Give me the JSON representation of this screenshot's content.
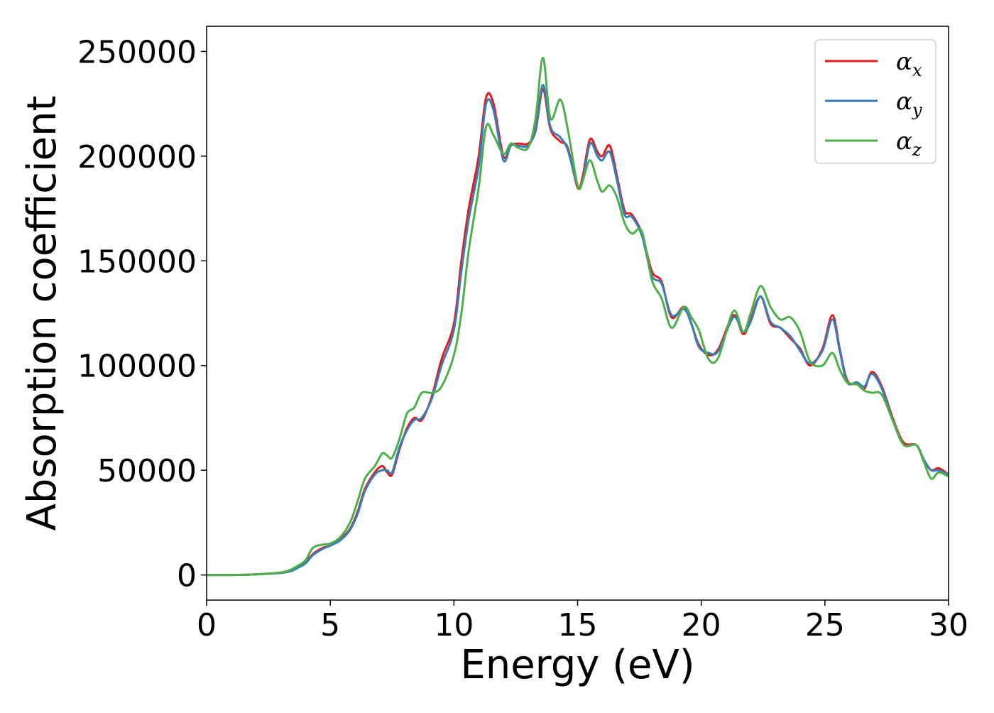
{
  "chart_data": {
    "type": "line",
    "title": "",
    "xlabel": "Energy (eV)",
    "ylabel": "Absorption coefficient",
    "xlim": [
      0,
      30
    ],
    "ylim": [
      -12000,
      262000
    ],
    "xticks": [
      0,
      5,
      10,
      15,
      20,
      25,
      30
    ],
    "yticks": [
      0,
      50000,
      100000,
      150000,
      200000,
      250000
    ],
    "grid": false,
    "legend_position": "top-right",
    "series": [
      {
        "name": "αx",
        "legend_base": "α",
        "legend_sub": "x",
        "color": "#e41a1c",
        "points": [
          [
            0,
            0
          ],
          [
            1,
            0
          ],
          [
            2,
            300
          ],
          [
            3,
            1000
          ],
          [
            3.4,
            2000
          ],
          [
            3.7,
            4000
          ],
          [
            4.0,
            6000
          ],
          [
            4.3,
            10000
          ],
          [
            4.7,
            13000
          ],
          [
            5.0,
            14000
          ],
          [
            5.4,
            17000
          ],
          [
            5.8,
            22000
          ],
          [
            6.1,
            30000
          ],
          [
            6.4,
            41000
          ],
          [
            6.8,
            49000
          ],
          [
            7.1,
            52000
          ],
          [
            7.3,
            49000
          ],
          [
            7.5,
            48000
          ],
          [
            7.8,
            60000
          ],
          [
            8.1,
            70000
          ],
          [
            8.4,
            75000
          ],
          [
            8.7,
            74000
          ],
          [
            9.1,
            85000
          ],
          [
            9.5,
            103000
          ],
          [
            10.0,
            120000
          ],
          [
            10.3,
            150000
          ],
          [
            10.6,
            175000
          ],
          [
            11.0,
            200000
          ],
          [
            11.3,
            228000
          ],
          [
            11.6,
            225000
          ],
          [
            12.0,
            200000
          ],
          [
            12.3,
            205000
          ],
          [
            12.6,
            206000
          ],
          [
            13.0,
            206000
          ],
          [
            13.3,
            212000
          ],
          [
            13.6,
            232000
          ],
          [
            13.9,
            213000
          ],
          [
            14.3,
            207000
          ],
          [
            14.6,
            204000
          ],
          [
            15.0,
            185000
          ],
          [
            15.2,
            190000
          ],
          [
            15.5,
            208000
          ],
          [
            15.8,
            202000
          ],
          [
            16.0,
            200000
          ],
          [
            16.3,
            205000
          ],
          [
            16.6,
            190000
          ],
          [
            16.9,
            174000
          ],
          [
            17.2,
            172000
          ],
          [
            17.6,
            163000
          ],
          [
            18.0,
            145000
          ],
          [
            18.4,
            140000
          ],
          [
            18.8,
            123000
          ],
          [
            19.3,
            128000
          ],
          [
            19.6,
            120000
          ],
          [
            19.9,
            110000
          ],
          [
            20.3,
            105000
          ],
          [
            20.7,
            108000
          ],
          [
            21.3,
            124000
          ],
          [
            21.7,
            115000
          ],
          [
            22.0,
            122000
          ],
          [
            22.4,
            133000
          ],
          [
            22.8,
            120000
          ],
          [
            23.2,
            118000
          ],
          [
            23.6,
            113000
          ],
          [
            24.0,
            108000
          ],
          [
            24.4,
            100000
          ],
          [
            24.9,
            108000
          ],
          [
            25.3,
            124000
          ],
          [
            25.6,
            108000
          ],
          [
            25.9,
            93000
          ],
          [
            26.3,
            91000
          ],
          [
            26.6,
            89000
          ],
          [
            26.9,
            97000
          ],
          [
            27.3,
            90000
          ],
          [
            27.8,
            73000
          ],
          [
            28.2,
            63000
          ],
          [
            28.7,
            62000
          ],
          [
            29.0,
            55000
          ],
          [
            29.3,
            50000
          ],
          [
            29.6,
            51000
          ],
          [
            30,
            48000
          ]
        ]
      },
      {
        "name": "αy",
        "legend_base": "α",
        "legend_sub": "y",
        "color": "#377eb8",
        "points": [
          [
            0,
            0
          ],
          [
            1,
            0
          ],
          [
            2,
            300
          ],
          [
            3,
            1000
          ],
          [
            3.4,
            1800
          ],
          [
            3.7,
            3500
          ],
          [
            4.0,
            5500
          ],
          [
            4.3,
            9500
          ],
          [
            4.7,
            12500
          ],
          [
            5.0,
            14000
          ],
          [
            5.4,
            16500
          ],
          [
            5.8,
            21500
          ],
          [
            6.1,
            29000
          ],
          [
            6.4,
            40000
          ],
          [
            6.8,
            48000
          ],
          [
            7.1,
            50000
          ],
          [
            7.3,
            50000
          ],
          [
            7.5,
            49000
          ],
          [
            7.8,
            61000
          ],
          [
            8.1,
            69000
          ],
          [
            8.4,
            74000
          ],
          [
            8.7,
            75000
          ],
          [
            9.1,
            84000
          ],
          [
            9.5,
            100000
          ],
          [
            10.0,
            117000
          ],
          [
            10.3,
            145000
          ],
          [
            10.6,
            170000
          ],
          [
            11.0,
            195000
          ],
          [
            11.3,
            225000
          ],
          [
            11.6,
            222000
          ],
          [
            12.0,
            198000
          ],
          [
            12.3,
            205000
          ],
          [
            12.6,
            205000
          ],
          [
            13.0,
            205000
          ],
          [
            13.3,
            213000
          ],
          [
            13.6,
            234000
          ],
          [
            13.9,
            214000
          ],
          [
            14.3,
            209000
          ],
          [
            14.6,
            203000
          ],
          [
            15.0,
            186000
          ],
          [
            15.2,
            188000
          ],
          [
            15.5,
            206000
          ],
          [
            15.8,
            200000
          ],
          [
            16.0,
            198000
          ],
          [
            16.3,
            202000
          ],
          [
            16.6,
            188000
          ],
          [
            16.9,
            172000
          ],
          [
            17.2,
            171000
          ],
          [
            17.6,
            162000
          ],
          [
            18.0,
            143000
          ],
          [
            18.4,
            139000
          ],
          [
            18.8,
            124000
          ],
          [
            19.3,
            127000
          ],
          [
            19.6,
            120000
          ],
          [
            19.9,
            109000
          ],
          [
            20.3,
            106000
          ],
          [
            20.7,
            107000
          ],
          [
            21.3,
            123000
          ],
          [
            21.7,
            116000
          ],
          [
            22.0,
            121000
          ],
          [
            22.4,
            133000
          ],
          [
            22.8,
            121000
          ],
          [
            23.2,
            118000
          ],
          [
            23.6,
            114000
          ],
          [
            24.0,
            107000
          ],
          [
            24.4,
            101000
          ],
          [
            24.9,
            107000
          ],
          [
            25.3,
            122000
          ],
          [
            25.6,
            107000
          ],
          [
            25.9,
            92000
          ],
          [
            26.3,
            92000
          ],
          [
            26.6,
            90000
          ],
          [
            26.9,
            96000
          ],
          [
            27.3,
            89000
          ],
          [
            27.8,
            72000
          ],
          [
            28.2,
            62000
          ],
          [
            28.7,
            62000
          ],
          [
            29.0,
            55000
          ],
          [
            29.3,
            50000
          ],
          [
            29.6,
            50000
          ],
          [
            30,
            48000
          ]
        ]
      },
      {
        "name": "αz",
        "legend_base": "α",
        "legend_sub": "z",
        "color": "#4daf4a",
        "points": [
          [
            0,
            0
          ],
          [
            1,
            0
          ],
          [
            2,
            300
          ],
          [
            3,
            1200
          ],
          [
            3.4,
            2500
          ],
          [
            3.7,
            4500
          ],
          [
            4.0,
            7000
          ],
          [
            4.3,
            13000
          ],
          [
            4.7,
            14500
          ],
          [
            5.0,
            15000
          ],
          [
            5.4,
            18000
          ],
          [
            5.8,
            25000
          ],
          [
            6.1,
            35000
          ],
          [
            6.4,
            46000
          ],
          [
            6.8,
            52000
          ],
          [
            7.1,
            58000
          ],
          [
            7.3,
            57000
          ],
          [
            7.5,
            56000
          ],
          [
            7.8,
            65000
          ],
          [
            8.1,
            77000
          ],
          [
            8.4,
            80000
          ],
          [
            8.7,
            87000
          ],
          [
            9.1,
            87000
          ],
          [
            9.5,
            90000
          ],
          [
            10.0,
            105000
          ],
          [
            10.3,
            125000
          ],
          [
            10.6,
            155000
          ],
          [
            11.0,
            185000
          ],
          [
            11.3,
            214000
          ],
          [
            11.6,
            210000
          ],
          [
            12.0,
            201000
          ],
          [
            12.3,
            206000
          ],
          [
            12.6,
            204000
          ],
          [
            13.0,
            204000
          ],
          [
            13.3,
            218000
          ],
          [
            13.6,
            247000
          ],
          [
            13.9,
            218000
          ],
          [
            14.3,
            227000
          ],
          [
            14.6,
            213000
          ],
          [
            15.0,
            186000
          ],
          [
            15.2,
            188000
          ],
          [
            15.5,
            198000
          ],
          [
            15.8,
            188000
          ],
          [
            16.0,
            183000
          ],
          [
            16.3,
            186000
          ],
          [
            16.6,
            180000
          ],
          [
            16.9,
            168000
          ],
          [
            17.2,
            163000
          ],
          [
            17.6,
            164000
          ],
          [
            18.0,
            141000
          ],
          [
            18.4,
            132000
          ],
          [
            18.8,
            118000
          ],
          [
            19.3,
            128000
          ],
          [
            19.6,
            123000
          ],
          [
            19.9,
            117000
          ],
          [
            20.3,
            103000
          ],
          [
            20.7,
            104000
          ],
          [
            21.3,
            126000
          ],
          [
            21.7,
            116000
          ],
          [
            22.0,
            125000
          ],
          [
            22.4,
            138000
          ],
          [
            22.8,
            128000
          ],
          [
            23.2,
            122000
          ],
          [
            23.6,
            123000
          ],
          [
            24.0,
            116000
          ],
          [
            24.4,
            102000
          ],
          [
            24.9,
            100000
          ],
          [
            25.3,
            106000
          ],
          [
            25.6,
            98000
          ],
          [
            25.9,
            92000
          ],
          [
            26.3,
            91000
          ],
          [
            26.6,
            88000
          ],
          [
            26.9,
            87000
          ],
          [
            27.3,
            86000
          ],
          [
            27.8,
            72000
          ],
          [
            28.2,
            62000
          ],
          [
            28.7,
            62000
          ],
          [
            29.0,
            54000
          ],
          [
            29.3,
            46000
          ],
          [
            29.6,
            49000
          ],
          [
            30,
            47000
          ]
        ]
      }
    ]
  }
}
